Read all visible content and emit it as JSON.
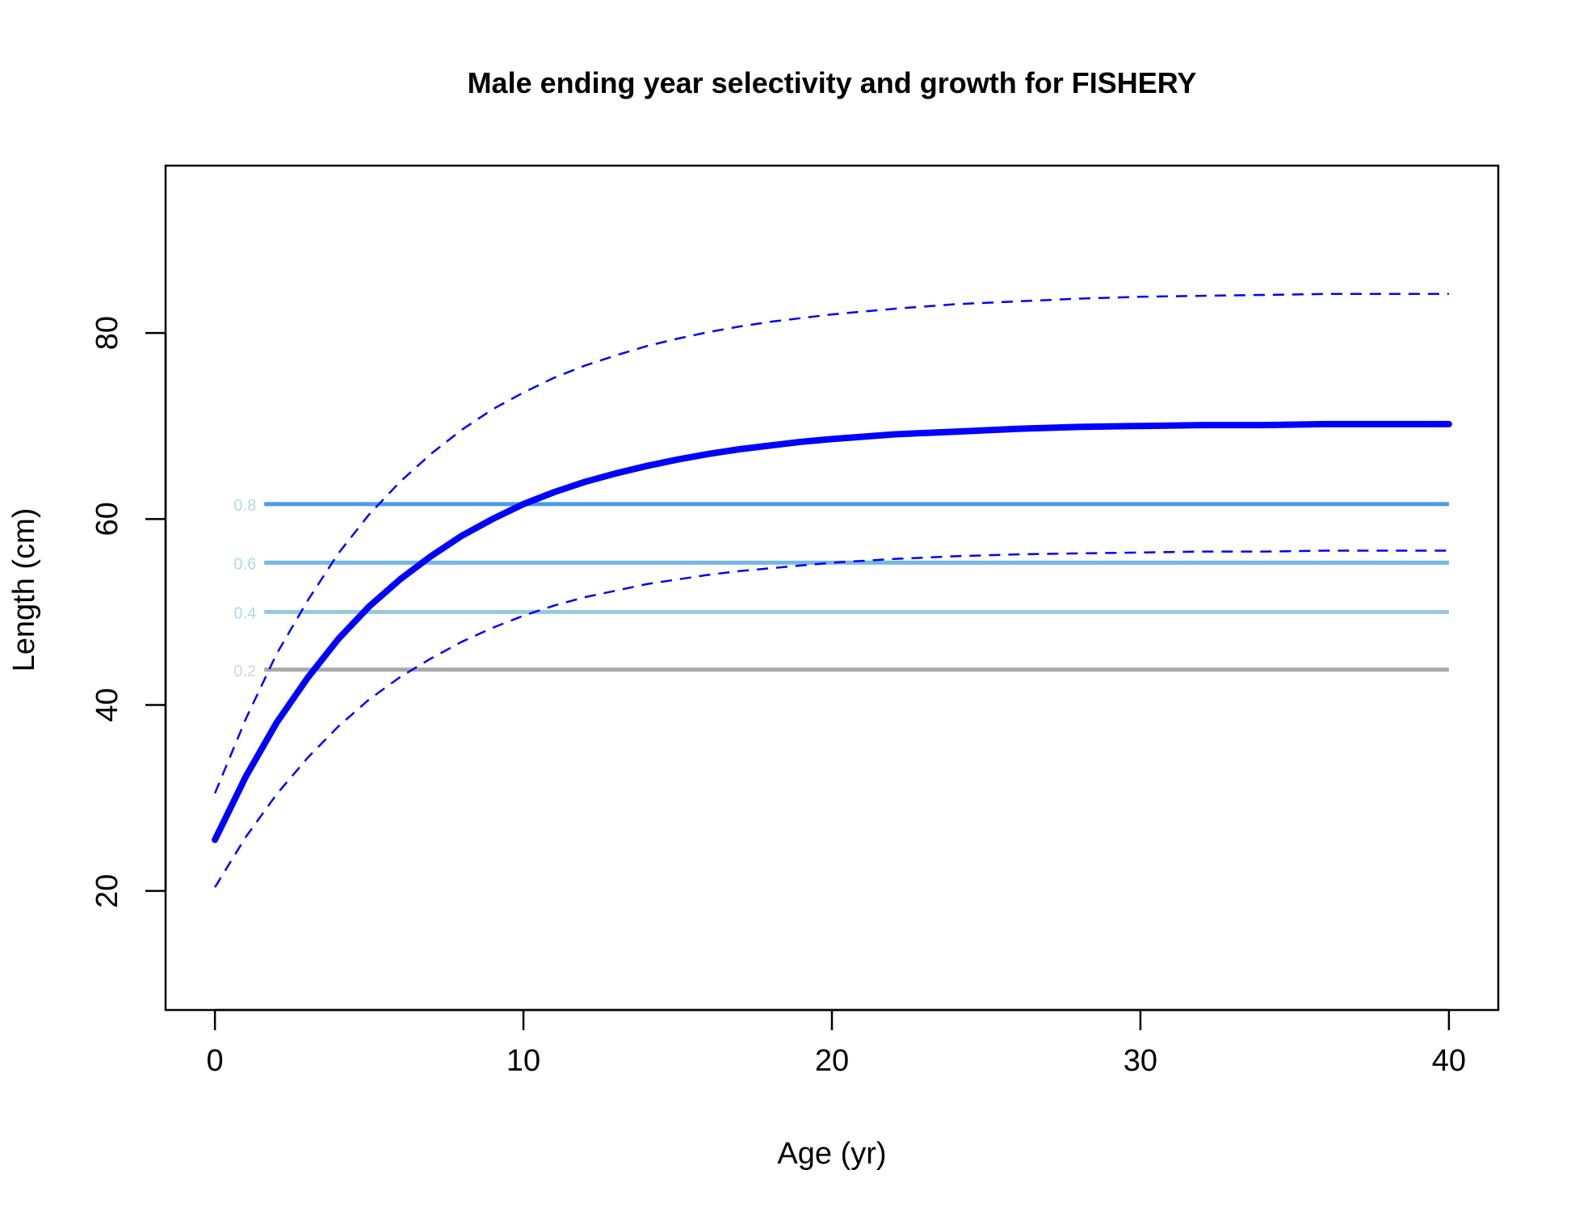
{
  "chart_data": {
    "type": "line",
    "title": "Male ending year selectivity and growth for FISHERY",
    "xlabel": "Age (yr)",
    "ylabel": "Length (cm)",
    "xlim": [
      -1.6,
      41.6
    ],
    "ylim": [
      7.2,
      98.0
    ],
    "xticks": [
      0,
      10,
      20,
      30,
      40
    ],
    "yticks": [
      20,
      40,
      60,
      80
    ],
    "grid": false,
    "colors": {
      "growth": "#0000FF",
      "ci": "#0000FF",
      "sel_0.2": "#A9A9A9",
      "sel_0.4": "#9AC8DC",
      "sel_0.6": "#74B7E6",
      "sel_0.8": "#4A9BEE",
      "label_0.2": "#D3D3D3",
      "label_0.4": "#ADD8E6",
      "label_0.6": "#ADD8E6",
      "label_0.8": "#ADD8E6"
    },
    "series": [
      {
        "role": "growth",
        "x": [
          0,
          1,
          2,
          3,
          4,
          5,
          6,
          7,
          8,
          9,
          10,
          11,
          12,
          13,
          14,
          15,
          16,
          17,
          18,
          19,
          20,
          22,
          24,
          26,
          28,
          30,
          32,
          34,
          36,
          38,
          40
        ],
        "values": [
          25.5,
          32.3,
          38.1,
          42.9,
          47.1,
          50.6,
          53.5,
          56.0,
          58.2,
          60.0,
          61.6,
          62.9,
          64.0,
          64.9,
          65.7,
          66.4,
          67.0,
          67.5,
          67.9,
          68.3,
          68.6,
          69.1,
          69.4,
          69.7,
          69.9,
          70.0,
          70.1,
          70.1,
          70.2,
          70.2,
          70.2
        ]
      },
      {
        "role": "ci",
        "x": [
          0,
          1,
          2,
          3,
          4,
          5,
          6,
          7,
          8,
          9,
          10,
          11,
          12,
          13,
          14,
          15,
          16,
          17,
          18,
          19,
          20,
          22,
          24,
          26,
          28,
          30,
          32,
          34,
          36,
          38,
          40
        ],
        "values": [
          30.5,
          38.5,
          45.5,
          51.2,
          56.3,
          60.5,
          64.0,
          67.0,
          69.6,
          71.8,
          73.6,
          75.2,
          76.5,
          77.6,
          78.6,
          79.4,
          80.1,
          80.7,
          81.2,
          81.6,
          82.0,
          82.6,
          83.1,
          83.4,
          83.7,
          83.9,
          84.0,
          84.1,
          84.2,
          84.2,
          84.2
        ]
      },
      {
        "role": "ci",
        "x": [
          0,
          1,
          2,
          3,
          4,
          5,
          6,
          7,
          8,
          9,
          10,
          11,
          12,
          13,
          14,
          15,
          16,
          17,
          18,
          19,
          20,
          22,
          24,
          26,
          28,
          30,
          32,
          34,
          36,
          38,
          40
        ],
        "values": [
          20.4,
          25.8,
          30.4,
          34.3,
          37.7,
          40.6,
          43.0,
          45.0,
          46.8,
          48.3,
          49.6,
          50.7,
          51.6,
          52.3,
          53.0,
          53.5,
          54.0,
          54.4,
          54.7,
          55.0,
          55.3,
          55.7,
          56.0,
          56.2,
          56.3,
          56.4,
          56.5,
          56.5,
          56.6,
          56.6,
          56.6
        ]
      }
    ],
    "selectivity_lines": [
      {
        "label": "0.2",
        "y": 43.8,
        "x_start": 1.6,
        "x_end": 40
      },
      {
        "label": "0.4",
        "y": 50.0,
        "x_start": 1.6,
        "x_end": 40
      },
      {
        "label": "0.6",
        "y": 55.3,
        "x_start": 1.6,
        "x_end": 40
      },
      {
        "label": "0.8",
        "y": 61.6,
        "x_start": 1.6,
        "x_end": 40
      }
    ]
  }
}
